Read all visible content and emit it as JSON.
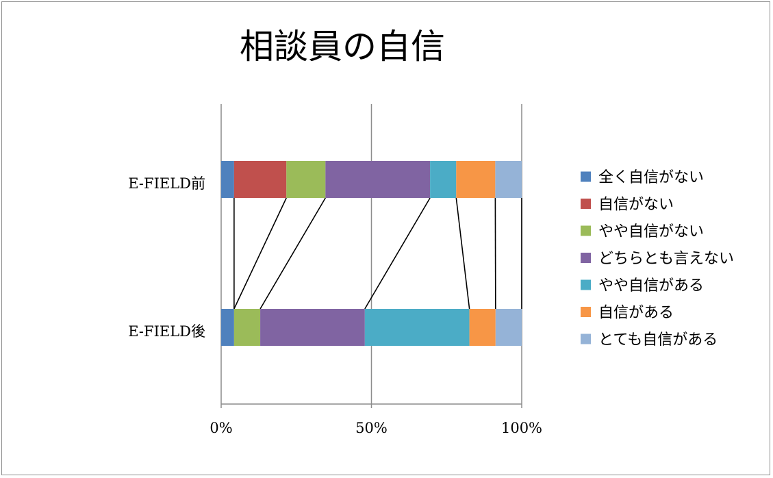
{
  "chart_data": {
    "type": "bar",
    "orientation": "horizontal",
    "stacked": "percent",
    "title": "相談員の自信",
    "categories": [
      "E-FIELD前",
      "E-FIELD後"
    ],
    "x_ticks": [
      "0%",
      "50%",
      "100%"
    ],
    "xlim": [
      0,
      100
    ],
    "grid": true,
    "legend_position": "right",
    "connector_lines": true,
    "series": [
      {
        "name": "全く自信がない",
        "color": "#4f81bd",
        "values": [
          4.3,
          4.3
        ]
      },
      {
        "name": "自信がない",
        "color": "#c0504d",
        "values": [
          17.4,
          0.0
        ]
      },
      {
        "name": "やや自信がない",
        "color": "#9bbb59",
        "values": [
          13.0,
          8.7
        ]
      },
      {
        "name": "どちらとも言えない",
        "color": "#8064a2",
        "values": [
          34.8,
          34.8
        ]
      },
      {
        "name": "やや自信がある",
        "color": "#4bacc6",
        "values": [
          8.7,
          34.8
        ]
      },
      {
        "name": "自信がある",
        "color": "#f79646",
        "values": [
          13.0,
          8.7
        ]
      },
      {
        "name": "とても自信がある",
        "color": "#95b3d7",
        "values": [
          8.8,
          8.7
        ]
      }
    ]
  }
}
